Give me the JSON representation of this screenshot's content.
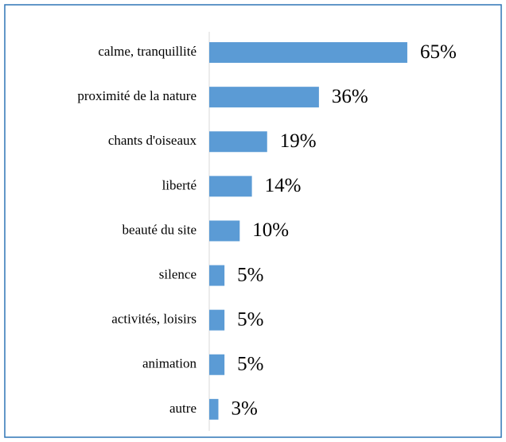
{
  "chart_data": {
    "type": "bar",
    "orientation": "horizontal",
    "categories": [
      "calme, tranquillité",
      "proximité de la nature",
      "chants d'oiseaux",
      "liberté",
      "beauté du site",
      "silence",
      "activités, loisirs",
      "animation",
      "autre"
    ],
    "values": [
      65,
      36,
      19,
      14,
      10,
      5,
      5,
      5,
      3
    ],
    "value_labels": [
      "65%",
      "36%",
      "19%",
      "14%",
      "10%",
      "5%",
      "5%",
      "5%",
      "3%"
    ],
    "color": "#5b9bd5"
  }
}
